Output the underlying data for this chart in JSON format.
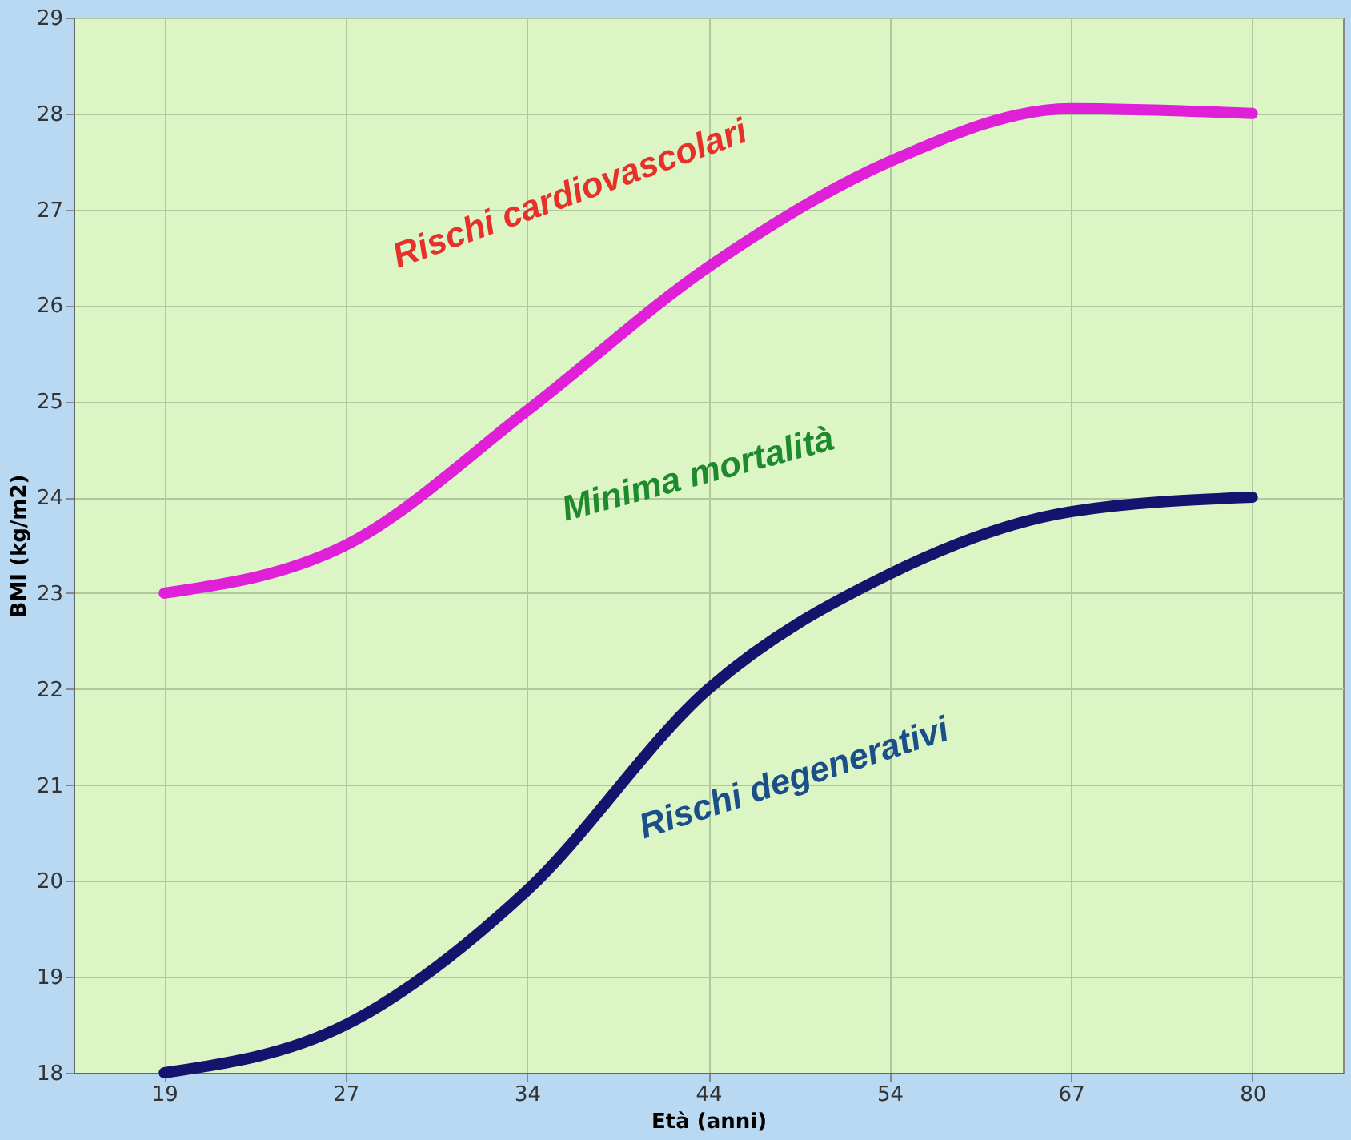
{
  "chart_data": {
    "type": "line",
    "xlabel": "Età (anni)",
    "ylabel": "BMI (kg/m2)",
    "categories": [
      "19",
      "27",
      "34",
      "44",
      "54",
      "67",
      "80"
    ],
    "series": [
      {
        "color": "#e020d8",
        "values": [
          23.0,
          23.5,
          24.9,
          26.4,
          27.5,
          28.05,
          28.0
        ]
      },
      {
        "color": "#14146e",
        "values": [
          18.0,
          18.5,
          19.9,
          22.0,
          23.2,
          23.85,
          24.0
        ]
      }
    ],
    "ylim": [
      18,
      29
    ],
    "yticks": [
      18,
      19,
      20,
      21,
      22,
      23,
      24,
      25,
      26,
      27,
      28,
      29
    ],
    "grid": true,
    "line_style": "solid",
    "marker": "none",
    "annotations": [
      "Rischi cardiovascolari",
      "Minima mortalità",
      "Rischi degenerativi"
    ]
  }
}
